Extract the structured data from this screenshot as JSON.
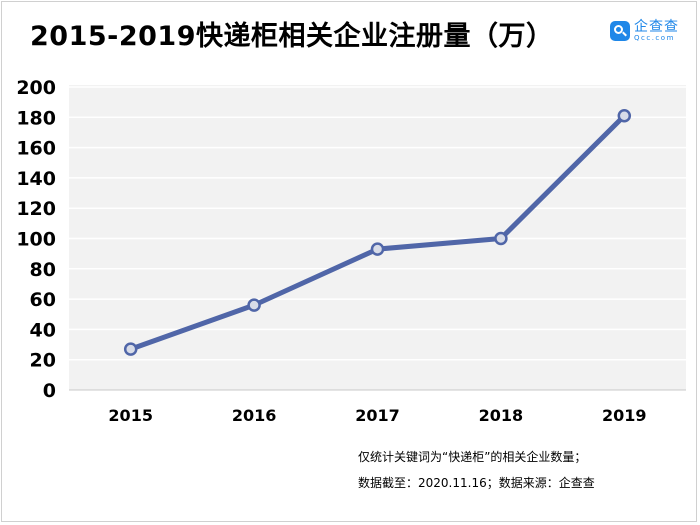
{
  "title": "2015-2019快递柜相关企业注册量（万）",
  "logo": {
    "name": "企查查",
    "domain": "Qcc.com"
  },
  "notes": [
    "仅统计关键词为“快递柜”的相关企业数量；",
    "数据截至：2020.11.16；数据来源：企查查"
  ],
  "chart_data": {
    "type": "line",
    "title": "2015-2019快递柜相关企业注册量（万）",
    "xlabel": "",
    "ylabel": "",
    "x": [
      "2015",
      "2016",
      "2017",
      "2018",
      "2019"
    ],
    "series": [
      {
        "values": [
          27,
          56,
          93,
          100,
          181
        ]
      }
    ],
    "ylim": [
      0,
      200
    ],
    "yticks": [
      0,
      20,
      40,
      60,
      80,
      100,
      120,
      140,
      160,
      180,
      200
    ],
    "grid": true,
    "legend": "none",
    "colors": {
      "line": "#5066a8",
      "marker_fill": "#d8dce8",
      "marker_stroke": "#5066a8",
      "plot_bg": "#f2f2f2",
      "grid": "#ffffff"
    }
  }
}
